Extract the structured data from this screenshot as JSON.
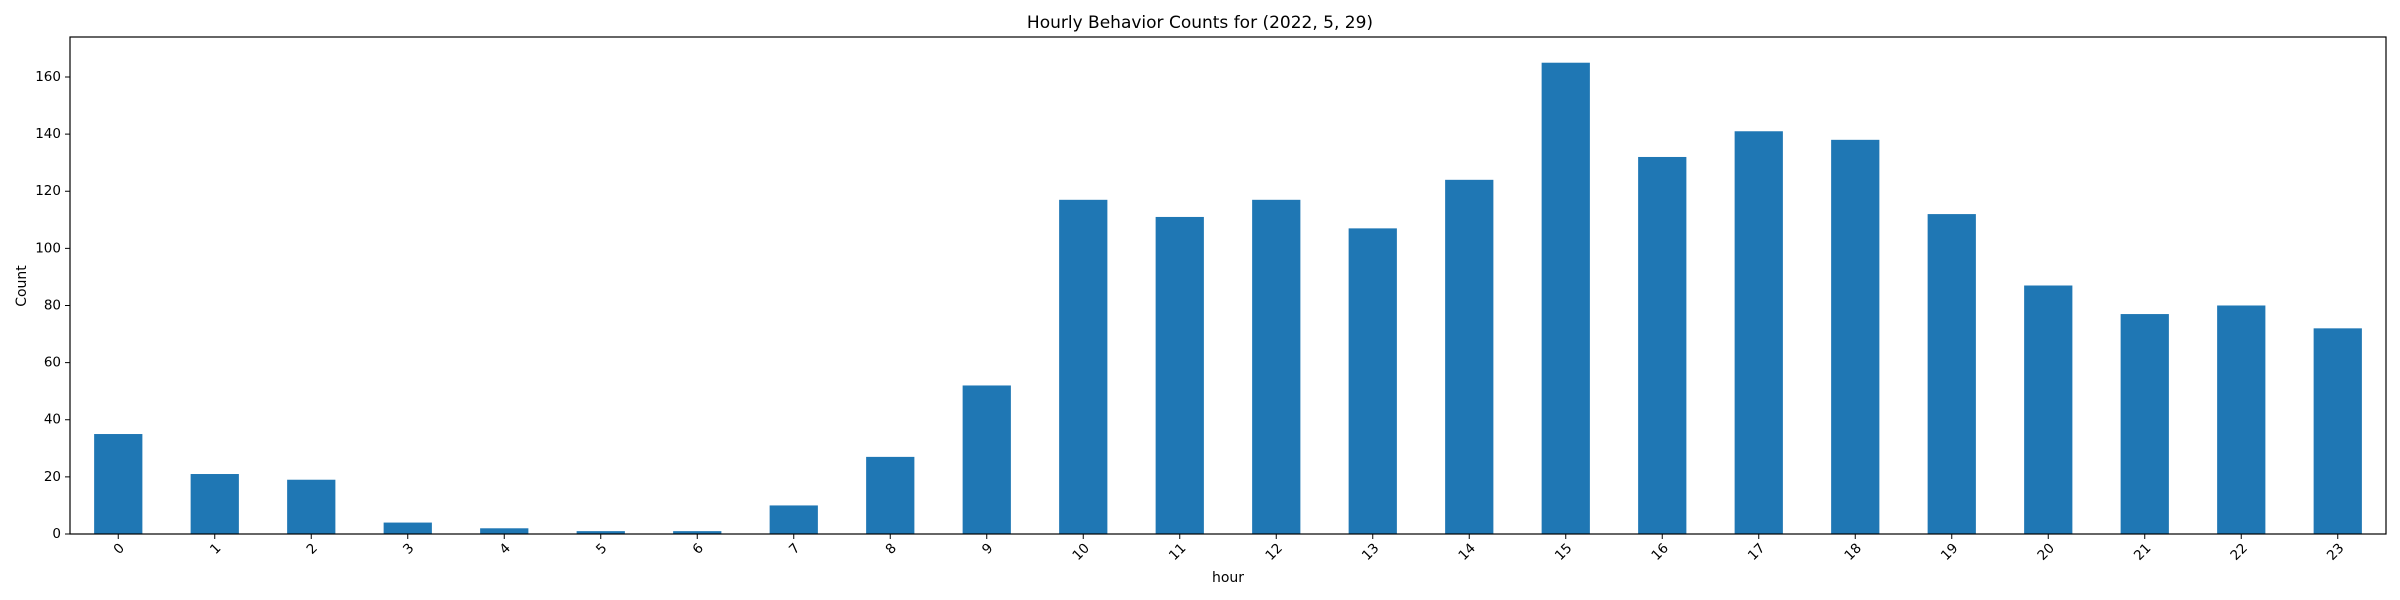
{
  "chart_data": {
    "type": "bar",
    "title": "Hourly Behavior Counts for (2022, 5, 29)",
    "xlabel": "hour",
    "ylabel": "Count",
    "categories": [
      "0",
      "1",
      "2",
      "3",
      "4",
      "5",
      "6",
      "7",
      "8",
      "9",
      "10",
      "11",
      "12",
      "13",
      "14",
      "15",
      "16",
      "17",
      "18",
      "19",
      "20",
      "21",
      "22",
      "23"
    ],
    "values": [
      35,
      21,
      19,
      4,
      2,
      1,
      1,
      10,
      27,
      52,
      117,
      111,
      117,
      107,
      124,
      165,
      132,
      141,
      138,
      112,
      87,
      77,
      80,
      72
    ],
    "ylim": [
      0,
      174
    ],
    "yticks": [
      0,
      20,
      40,
      60,
      80,
      100,
      120,
      140,
      160
    ],
    "grid": false,
    "legend": "none",
    "bar_color": "#1f77b4",
    "axis_color": "#000000"
  }
}
